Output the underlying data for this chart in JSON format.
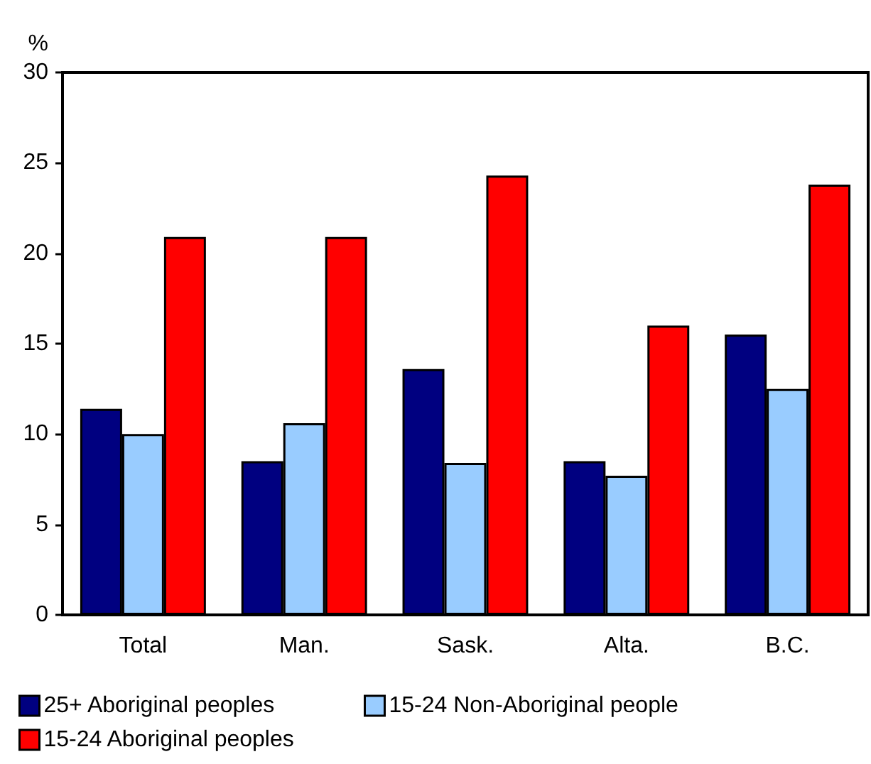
{
  "chart_data": {
    "type": "bar",
    "ylabel": "%",
    "categories": [
      "Total",
      "Man.",
      "Sask.",
      "Alta.",
      "B.C."
    ],
    "series": [
      {
        "name": "25+ Aboriginal peoples",
        "color": "#000080",
        "values": [
          11.4,
          8.5,
          13.6,
          8.5,
          15.5
        ]
      },
      {
        "name": "15-24 Non-Aboriginal people",
        "color": "#99ccff",
        "values": [
          10.0,
          10.6,
          8.4,
          7.7,
          12.5
        ]
      },
      {
        "name": "15-24 Aboriginal peoples",
        "color": "#ff0000",
        "values": [
          20.9,
          20.9,
          24.3,
          16.0,
          23.8
        ]
      }
    ],
    "ylim": [
      0,
      30
    ],
    "yticks": [
      0,
      5,
      10,
      15,
      20,
      25,
      30
    ],
    "grid": false,
    "legend": "bottom left"
  }
}
